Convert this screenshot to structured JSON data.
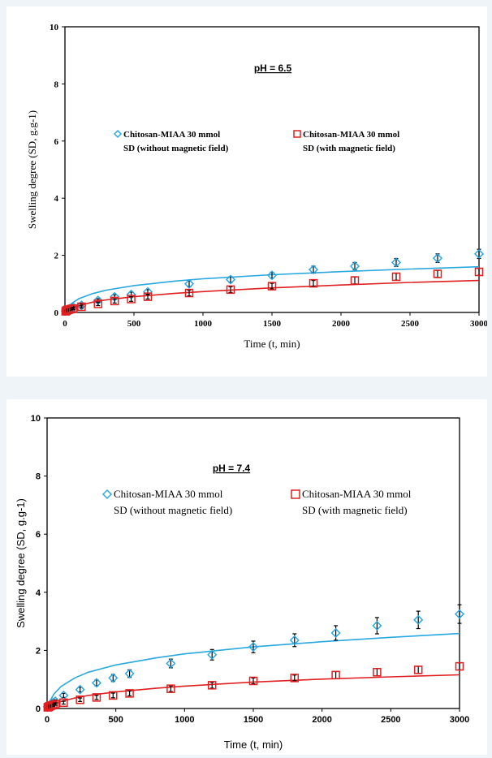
{
  "chart_data": [
    {
      "type": "scatter",
      "annotation": "pH = 6.5",
      "xlabel": "Time (t, min)",
      "ylabel": "Swelling degree (SD, g.g-1)",
      "xlim": [
        0,
        3000
      ],
      "ylim": [
        0,
        10
      ],
      "xticks": [
        "0",
        "500",
        "1000",
        "1500",
        "2000",
        "2500",
        "3000"
      ],
      "yticks": [
        "0",
        "2",
        "4",
        "6",
        "8",
        "10"
      ],
      "legend_placement": "upper-middle",
      "series": [
        {
          "name_line1": "Chitosan-MIAA 30 mmol",
          "name_line2": "SD (without magnetic field)",
          "marker": "diamond",
          "color": "#29a8e0",
          "x": [
            5,
            10,
            15,
            20,
            30,
            45,
            60,
            120,
            240,
            360,
            480,
            600,
            900,
            1200,
            1500,
            1800,
            2100,
            2400,
            2700,
            3000
          ],
          "y": [
            0.05,
            0.07,
            0.09,
            0.1,
            0.12,
            0.15,
            0.18,
            0.25,
            0.42,
            0.55,
            0.63,
            0.72,
            1.0,
            1.15,
            1.3,
            1.5,
            1.62,
            1.75,
            1.9,
            2.05
          ],
          "err": [
            0.03,
            0.03,
            0.03,
            0.03,
            0.03,
            0.04,
            0.04,
            0.05,
            0.06,
            0.07,
            0.08,
            0.08,
            0.1,
            0.1,
            0.1,
            0.12,
            0.13,
            0.14,
            0.15,
            0.16
          ],
          "fit": {
            "x": [
              0,
              20,
              50,
              100,
              200,
              300,
              500,
              800,
              1000,
              1500,
              2000,
              2500,
              3000
            ],
            "y": [
              0,
              0.15,
              0.32,
              0.48,
              0.66,
              0.78,
              0.94,
              1.1,
              1.18,
              1.32,
              1.43,
              1.52,
              1.6
            ]
          }
        },
        {
          "name_line1": "Chitosan-MIAA 30 mmol",
          "name_line2": "SD (with magnetic field)",
          "marker": "square",
          "color": "#e02020",
          "x": [
            5,
            10,
            15,
            20,
            30,
            45,
            60,
            120,
            240,
            360,
            480,
            600,
            900,
            1200,
            1500,
            1800,
            2100,
            2400,
            2700,
            3000
          ],
          "y": [
            0.04,
            0.06,
            0.08,
            0.09,
            0.1,
            0.12,
            0.14,
            0.2,
            0.3,
            0.4,
            0.47,
            0.55,
            0.68,
            0.8,
            0.92,
            1.02,
            1.12,
            1.25,
            1.35,
            1.42
          ],
          "err": [
            0.03,
            0.03,
            0.03,
            0.03,
            0.03,
            0.03,
            0.04,
            0.05,
            0.06,
            0.07,
            0.08,
            0.08,
            0.1,
            0.1,
            0.1,
            0.1,
            0.12,
            0.12,
            0.12,
            0.12
          ],
          "fit": {
            "x": [
              0,
              20,
              50,
              100,
              200,
              300,
              500,
              800,
              1000,
              1500,
              2000,
              2500,
              3000
            ],
            "y": [
              0,
              0.07,
              0.15,
              0.24,
              0.36,
              0.44,
              0.55,
              0.67,
              0.73,
              0.86,
              0.96,
              1.05,
              1.12
            ]
          }
        }
      ]
    },
    {
      "type": "scatter",
      "annotation": "pH = 7.4",
      "xlabel": "Time (t, min)",
      "ylabel": "Swelling degree (SD, g.g-1)",
      "xlim": [
        0,
        3000
      ],
      "ylim": [
        0,
        10
      ],
      "xticks": [
        "0",
        "500",
        "1000",
        "1500",
        "2000",
        "2500",
        "3000"
      ],
      "yticks": [
        "0",
        "2",
        "4",
        "6",
        "8",
        "10"
      ],
      "legend_placement": "upper-middle",
      "series": [
        {
          "name_line1": "Chitosan-MIAA 30 mmol",
          "name_line2": "SD (without magnetic field)",
          "marker": "diamond",
          "color": "#29a8e0",
          "x": [
            5,
            10,
            15,
            20,
            30,
            45,
            60,
            120,
            240,
            360,
            480,
            600,
            900,
            1200,
            1500,
            1800,
            2100,
            2400,
            2700,
            3000
          ],
          "y": [
            0.06,
            0.08,
            0.1,
            0.12,
            0.15,
            0.2,
            0.25,
            0.45,
            0.65,
            0.88,
            1.05,
            1.2,
            1.55,
            1.85,
            2.12,
            2.35,
            2.6,
            2.85,
            3.05,
            3.25
          ],
          "err": [
            0.03,
            0.03,
            0.03,
            0.04,
            0.04,
            0.05,
            0.05,
            0.07,
            0.08,
            0.1,
            0.12,
            0.13,
            0.15,
            0.18,
            0.2,
            0.22,
            0.25,
            0.28,
            0.3,
            0.32
          ],
          "fit": {
            "x": [
              0,
              20,
              50,
              100,
              200,
              300,
              500,
              800,
              1000,
              1500,
              2000,
              2500,
              3000
            ],
            "y": [
              0,
              0.25,
              0.5,
              0.75,
              1.05,
              1.25,
              1.5,
              1.75,
              1.88,
              2.12,
              2.3,
              2.45,
              2.58
            ]
          }
        },
        {
          "name_line1": "Chitosan-MIAA 30 mmol",
          "name_line2": "SD (with magnetic field)",
          "marker": "square",
          "color": "#e02020",
          "x": [
            5,
            10,
            15,
            20,
            30,
            45,
            60,
            120,
            240,
            360,
            480,
            600,
            900,
            1200,
            1500,
            1800,
            2100,
            2400,
            2700,
            3000
          ],
          "y": [
            0.04,
            0.05,
            0.07,
            0.08,
            0.1,
            0.12,
            0.15,
            0.2,
            0.3,
            0.38,
            0.45,
            0.52,
            0.68,
            0.8,
            0.95,
            1.05,
            1.15,
            1.25,
            1.33,
            1.45
          ],
          "err": [
            0.03,
            0.03,
            0.03,
            0.03,
            0.03,
            0.04,
            0.04,
            0.05,
            0.06,
            0.07,
            0.08,
            0.08,
            0.1,
            0.1,
            0.1,
            0.1,
            0.12,
            0.12,
            0.12,
            0.12
          ],
          "fit": {
            "x": [
              0,
              20,
              50,
              100,
              200,
              300,
              500,
              800,
              1000,
              1500,
              2000,
              2500,
              3000
            ],
            "y": [
              0,
              0.07,
              0.15,
              0.24,
              0.36,
              0.45,
              0.57,
              0.7,
              0.77,
              0.91,
              1.01,
              1.09,
              1.16
            ]
          }
        }
      ]
    }
  ]
}
